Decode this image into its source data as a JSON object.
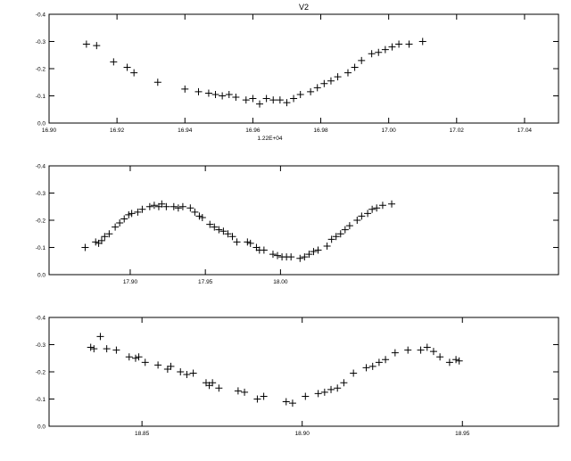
{
  "chart_data": [
    {
      "type": "scatter",
      "title": "V2",
      "xlabel": "1.22E+04",
      "ylabel": "",
      "xlim": [
        16.9,
        17.05
      ],
      "ylim": [
        0.0,
        0.4
      ],
      "xticks": [
        16.9,
        16.92,
        16.94,
        16.96,
        16.98,
        17.0,
        17.02,
        17.04
      ],
      "xtick_labels": [
        "16.90",
        "16.92",
        "16.94",
        "16.96",
        "16.98",
        "17.00",
        "17.02",
        "17.04"
      ],
      "yticks": [
        0.0,
        0.1,
        0.2,
        0.3,
        0.4
      ],
      "ytick_labels": [
        "0.0",
        "-0.1",
        "-0.2",
        "-0.3",
        "-0.4"
      ],
      "y_inverted": true,
      "grid": false,
      "marker": "+",
      "points": [
        [
          16.911,
          0.29
        ],
        [
          16.914,
          0.285
        ],
        [
          16.919,
          0.225
        ],
        [
          16.923,
          0.205
        ],
        [
          16.925,
          0.185
        ],
        [
          16.932,
          0.15
        ],
        [
          16.94,
          0.125
        ],
        [
          16.944,
          0.115
        ],
        [
          16.947,
          0.11
        ],
        [
          16.949,
          0.105
        ],
        [
          16.951,
          0.1
        ],
        [
          16.953,
          0.105
        ],
        [
          16.955,
          0.095
        ],
        [
          16.958,
          0.085
        ],
        [
          16.96,
          0.09
        ],
        [
          16.962,
          0.07
        ],
        [
          16.964,
          0.09
        ],
        [
          16.966,
          0.085
        ],
        [
          16.968,
          0.085
        ],
        [
          16.97,
          0.075
        ],
        [
          16.972,
          0.09
        ],
        [
          16.974,
          0.105
        ],
        [
          16.977,
          0.115
        ],
        [
          16.979,
          0.13
        ],
        [
          16.981,
          0.145
        ],
        [
          16.983,
          0.155
        ],
        [
          16.985,
          0.17
        ],
        [
          16.988,
          0.185
        ],
        [
          16.99,
          0.205
        ],
        [
          16.992,
          0.23
        ],
        [
          16.995,
          0.255
        ],
        [
          16.997,
          0.26
        ],
        [
          16.999,
          0.27
        ],
        [
          17.001,
          0.28
        ],
        [
          17.003,
          0.29
        ],
        [
          17.006,
          0.29
        ],
        [
          17.01,
          0.3
        ]
      ]
    },
    {
      "type": "scatter",
      "title": "",
      "xlabel": "",
      "ylabel": "",
      "xlim": [
        17.846,
        18.185
      ],
      "ylim": [
        0.0,
        0.4
      ],
      "xticks": [
        17.9,
        17.95,
        18.0
      ],
      "xtick_labels": [
        "17.90",
        "17.95",
        "18.00"
      ],
      "yticks": [
        0.0,
        0.1,
        0.2,
        0.3,
        0.4
      ],
      "ytick_labels": [
        "0.0",
        "-0.1",
        "-0.2",
        "-0.3",
        "-0.4"
      ],
      "y_inverted": true,
      "grid": false,
      "marker": "+",
      "points": [
        [
          17.87,
          0.1
        ],
        [
          17.877,
          0.12
        ],
        [
          17.879,
          0.115
        ],
        [
          17.881,
          0.125
        ],
        [
          17.883,
          0.14
        ],
        [
          17.886,
          0.15
        ],
        [
          17.89,
          0.175
        ],
        [
          17.893,
          0.19
        ],
        [
          17.896,
          0.205
        ],
        [
          17.899,
          0.22
        ],
        [
          17.901,
          0.225
        ],
        [
          17.905,
          0.23
        ],
        [
          17.908,
          0.24
        ],
        [
          17.913,
          0.25
        ],
        [
          17.916,
          0.255
        ],
        [
          17.919,
          0.25
        ],
        [
          17.921,
          0.26
        ],
        [
          17.924,
          0.25
        ],
        [
          17.929,
          0.25
        ],
        [
          17.932,
          0.245
        ],
        [
          17.935,
          0.25
        ],
        [
          17.94,
          0.245
        ],
        [
          17.943,
          0.23
        ],
        [
          17.946,
          0.215
        ],
        [
          17.948,
          0.21
        ],
        [
          17.953,
          0.185
        ],
        [
          17.956,
          0.175
        ],
        [
          17.959,
          0.165
        ],
        [
          17.962,
          0.16
        ],
        [
          17.965,
          0.15
        ],
        [
          17.968,
          0.14
        ],
        [
          17.971,
          0.12
        ],
        [
          17.978,
          0.12
        ],
        [
          17.98,
          0.115
        ],
        [
          17.984,
          0.1
        ],
        [
          17.986,
          0.09
        ],
        [
          17.989,
          0.09
        ],
        [
          17.995,
          0.075
        ],
        [
          17.998,
          0.07
        ],
        [
          18.001,
          0.065
        ],
        [
          18.004,
          0.065
        ],
        [
          18.007,
          0.065
        ],
        [
          18.013,
          0.06
        ],
        [
          18.016,
          0.065
        ],
        [
          18.019,
          0.075
        ],
        [
          18.022,
          0.085
        ],
        [
          18.025,
          0.09
        ],
        [
          18.031,
          0.105
        ],
        [
          18.034,
          0.13
        ],
        [
          18.037,
          0.14
        ],
        [
          18.04,
          0.15
        ],
        [
          18.043,
          0.165
        ],
        [
          18.046,
          0.18
        ],
        [
          18.051,
          0.2
        ],
        [
          18.054,
          0.215
        ],
        [
          18.058,
          0.225
        ],
        [
          18.061,
          0.24
        ],
        [
          18.064,
          0.245
        ],
        [
          18.068,
          0.255
        ],
        [
          18.074,
          0.26
        ]
      ]
    },
    {
      "type": "scatter",
      "title": "",
      "xlabel": "",
      "ylabel": "",
      "xlim": [
        18.821,
        18.98
      ],
      "ylim": [
        0.0,
        0.4
      ],
      "xticks": [
        18.85,
        18.9,
        18.95
      ],
      "xtick_labels": [
        "18.85",
        "18.90",
        "18.95"
      ],
      "yticks": [
        0.0,
        0.1,
        0.2,
        0.3,
        0.4
      ],
      "ytick_labels": [
        "0.0",
        "-0.1",
        "-0.2",
        "-0.3",
        "-0.4"
      ],
      "y_inverted": true,
      "grid": false,
      "marker": "+",
      "points": [
        [
          18.834,
          0.29
        ],
        [
          18.835,
          0.285
        ],
        [
          18.837,
          0.33
        ],
        [
          18.839,
          0.285
        ],
        [
          18.842,
          0.28
        ],
        [
          18.846,
          0.255
        ],
        [
          18.848,
          0.25
        ],
        [
          18.849,
          0.255
        ],
        [
          18.851,
          0.235
        ],
        [
          18.855,
          0.225
        ],
        [
          18.858,
          0.21
        ],
        [
          18.859,
          0.22
        ],
        [
          18.862,
          0.2
        ],
        [
          18.864,
          0.19
        ],
        [
          18.866,
          0.195
        ],
        [
          18.87,
          0.16
        ],
        [
          18.871,
          0.15
        ],
        [
          18.872,
          0.16
        ],
        [
          18.874,
          0.14
        ],
        [
          18.88,
          0.13
        ],
        [
          18.882,
          0.125
        ],
        [
          18.886,
          0.1
        ],
        [
          18.888,
          0.11
        ],
        [
          18.895,
          0.09
        ],
        [
          18.897,
          0.085
        ],
        [
          18.901,
          0.11
        ],
        [
          18.905,
          0.12
        ],
        [
          18.907,
          0.125
        ],
        [
          18.909,
          0.135
        ],
        [
          18.911,
          0.14
        ],
        [
          18.913,
          0.16
        ],
        [
          18.916,
          0.195
        ],
        [
          18.92,
          0.215
        ],
        [
          18.922,
          0.22
        ],
        [
          18.924,
          0.235
        ],
        [
          18.926,
          0.245
        ],
        [
          18.929,
          0.27
        ],
        [
          18.933,
          0.28
        ],
        [
          18.937,
          0.28
        ],
        [
          18.939,
          0.29
        ],
        [
          18.941,
          0.275
        ],
        [
          18.943,
          0.255
        ],
        [
          18.946,
          0.235
        ],
        [
          18.948,
          0.245
        ],
        [
          18.949,
          0.24
        ]
      ]
    }
  ]
}
